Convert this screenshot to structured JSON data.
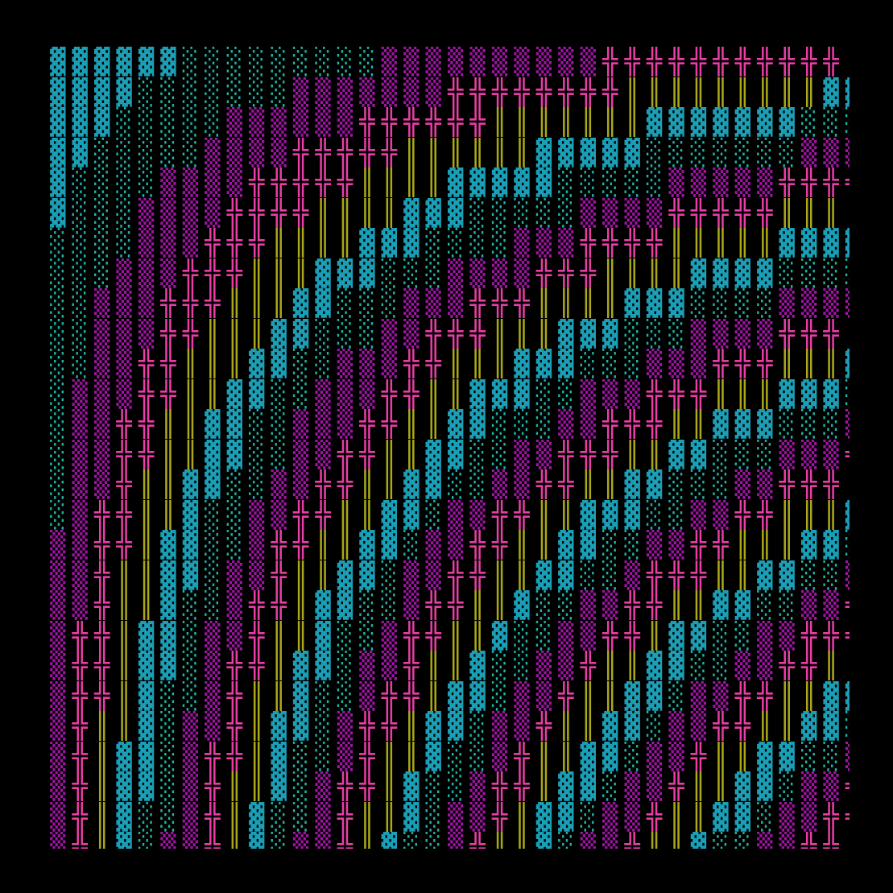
{
  "art": {
    "palette": {
      "▓": "#1b9fb6",
      "░": "#22b3a2",
      "▒": "#a014a4",
      "╬": "#e83ea6",
      "║": "#aaa818"
    },
    "background": "#000000",
    "rows": [
      "▓▓▓▓▓▓░░░░░░░░░▒▒▒▒▒▒▒▒▒▒╬╬╬╬╬╬╬╬╬╬╬║",
      "▓▓▓▓░░░░░░░▒▒▒▒▒▒▒╬╬╬╬╬╬╬╬║║║║║║║║║▓▓",
      "▓▓▓░░░░░▒▒▒▒▒▒╬╬╬╬╬╬║║║║║║║▓▓▓▓▓▓▓░░░",
      "▓▓░░░░░▒▒▒▒╬╬╬╬╬║║║║║║▓▓▓▓▓░░░░░░░▒▒▒",
      "▓░░░░▒▒▒▒╬╬╬╬╬║║║║▓▓▓▓▓░░░░░▒▒▒▒▒╬╬╬╬",
      "▓░░░▒▒▒▒╬╬╬╬║║║║▓▓▓░░░░░▒▒▒▒╬╬╬╬╬║║║║",
      "░░░░▒▒▒╬╬╬║║║║▓▓▓░░░░▒▒▒╬╬╬╬║║║║║▓▓▓▓",
      "░░░▒▒▒╬╬╬║║║▓▓▓░░░▒▒▒▒╬╬╬║║║║▓▓▓▓░░░░",
      "░░▒▒▒╬╬╬║║║▓▓░░░▒▒▒╬╬╬║║║║▓▓▓░░░░▒▒▒▒",
      "░░▒▒▒╬╬║║║▓▓░░░▒▒╬╬╬║║║▓▓▓░░░▒▒▒▒╬╬╬║",
      "░░▒▒╬╬║║║▓▓░░▒▒▒╬╬║║║▓▓▓░░░▒▒▒╬╬╬║║║▓",
      "░▒▒▒╬╬║║▓▓░░▒▒▒╬╬║║▓▓▓░░▒▒▒╬╬╬║║║▓▓▓░",
      "░▒▒╬╬║║▓▓░░▒▒▒╬╬║║▓▓░░░▒▒╬╬╬║║▓▓▓░░░▒",
      "░▒▒╬╬║║▓▓░░▒▒╬╬║║▓▓░░▒▒╬╬╬║║▓▓░░░▒▒▒╬",
      "░▒▒╬║║▓▓░░▒▒╬╬║║▓▓░░▒▒╬╬║║▓▓░░░▒▒╬╬╬║",
      "░▒╬╬║║▓░░▒▒╬╬║║▓▓░▒▒╬╬║║▓▓▓░░▒▒╬╬║║║▓",
      "▒▒╬╬║▓▓░░▒╬╬║║▓▓░▒▒╬╬║║▓▓░░▒▒╬╬║║║▓▓░",
      "▒▒╬║║▓▓░▒▒╬║║▓▓░▒▒╬╬║║▓▓░░▒╬╬╬║║▓▓░░▒",
      "▒▒╬║║▓░░▒╬╬║▓▓░░▒╬╬║║▓░░▒▒╬╬║║▓▓░░▒▒╬",
      "▒╬╬║▓▓░▒▒╬║║▓░░▒╬╬║║▓░░▒▒╬╬║▓▓░░▒▒╬╬╬",
      "▒╬╬║▓▓░▒╬╬║▓▓░▒▒╬║║▓░░▒▒╬║║▓▓░░▒▒╬╬║║",
      "▒╬╬║▓░░▒╬║║▓░░▒╬╬║▓▓░▒▒╬║║▓▓░▒▒╬╬║║▓▓",
      "▒╬║║▓░▒▒╬║▓▓░▒╬╬║▓▓░▒▒╬║║▓▓░▒▒╬╬║║▓▓░",
      "▒╬║▓▓░▒╬╬║▓░░▒╬║║▓░░▒╬║║▓▓░▒▒╬║║▓▓░░▒",
      "▒╬║▓▓░▒╬║║▓░▒╬╬║▓░░▒╬╬║▓▓░▒▒╬║║▓▓░▒▒╬",
      "▒╬║▓░░▒╬║▓░░▒╬║║▓░▒▒╬║▓▓░▒▒╬║║▓▓░▒▒╬╬",
      "▒╬║▓░▒▒╬║▓░▒▒╬║▓░░▒╬║║▓░▒▒╬║║▓░░▒▒╬╬║"
    ]
  }
}
